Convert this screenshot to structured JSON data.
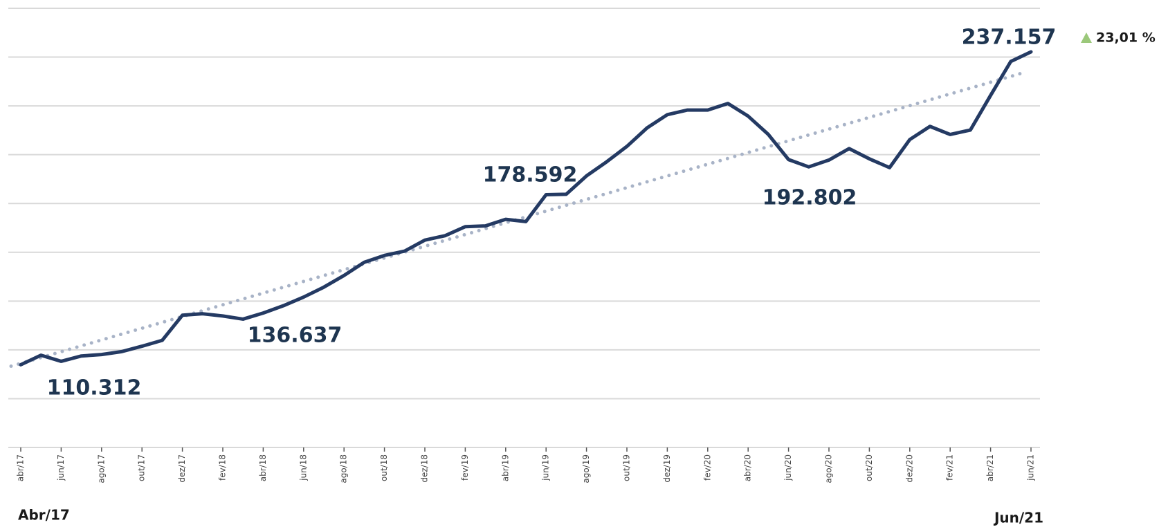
{
  "chart_data": {
    "type": "line",
    "categories": [
      "abr/17",
      null,
      "jun/17",
      null,
      "ago/17",
      null,
      "out/17",
      null,
      "dez/17",
      null,
      "fev/18",
      null,
      "abr/18",
      null,
      "jun/18",
      null,
      "ago/18",
      null,
      "out/18",
      null,
      "dez/18",
      null,
      "fev/19",
      null,
      "abr/19",
      null,
      "jun/19",
      null,
      "ago/19",
      null,
      "out/19",
      null,
      "dez/19",
      null,
      "fev/20",
      null,
      "abr/20",
      null,
      "jun/20",
      null,
      "ago/20",
      null,
      "out/20",
      null,
      "dez/20",
      null,
      "fev/21",
      null,
      "abr/21",
      null,
      "jun/21"
    ],
    "series": [
      {
        "color": "#243a63",
        "values": [
          108900,
          112800,
          110312,
          112500,
          113100,
          114300,
          116500,
          118900,
          129200,
          129800,
          128900,
          127600,
          130100,
          133100,
          136637,
          140700,
          145500,
          150900,
          153700,
          155500,
          160000,
          161800,
          165500,
          165800,
          168500,
          167600,
          178592,
          178800,
          186300,
          192100,
          198400,
          206000,
          211400,
          213300,
          213300,
          216000,
          210800,
          203300,
          193000,
          190000,
          192802,
          197500,
          193300,
          189700,
          201200,
          206600,
          203300,
          205100,
          219300,
          233200,
          237157
        ]
      }
    ],
    "trend": {
      "color": "#a8b3c7",
      "values": [
        108300,
        229000
      ]
    },
    "ylim": [
      75000,
      255000
    ],
    "yticks": [
      75000,
      95000,
      115000,
      135000,
      155000,
      175000,
      195000,
      215000,
      235000,
      255000
    ],
    "grid": true,
    "annotations": [
      "110.312",
      "136.637",
      "178.592",
      "192.802",
      "237.157"
    ],
    "change": "23,01 %",
    "range_start": "Abr/17",
    "range_end": "Jun/21"
  }
}
